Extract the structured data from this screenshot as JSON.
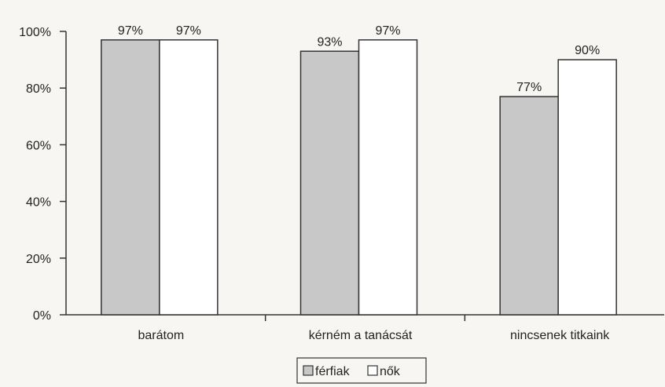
{
  "chart_data": {
    "type": "bar",
    "categories": [
      "barátom",
      "kérném a tanácsát",
      "nincsenek titkaink"
    ],
    "series": [
      {
        "name": "férfiak",
        "values": [
          97,
          93,
          77
        ],
        "labels": [
          "97%",
          "93%",
          "77%"
        ],
        "color": "#c8c8c8"
      },
      {
        "name": "nők",
        "values": [
          97,
          97,
          90
        ],
        "labels": [
          "97%",
          "97%",
          "90%"
        ],
        "color": "#ffffff"
      }
    ],
    "ylim": [
      0,
      100
    ],
    "yticks": [
      "0%",
      "20%",
      "40%",
      "60%",
      "80%",
      "100%"
    ],
    "grid": false,
    "legend": "bottom",
    "title": "",
    "xlabel": "",
    "ylabel": ""
  }
}
